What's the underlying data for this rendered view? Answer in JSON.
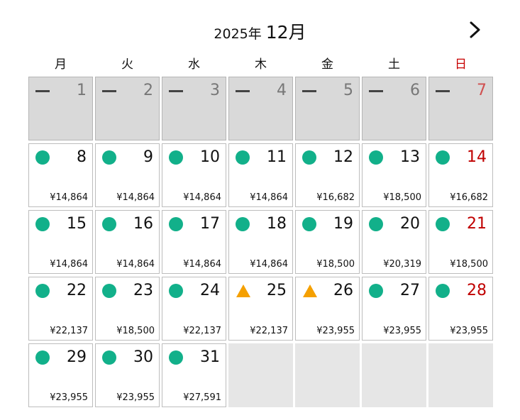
{
  "header": {
    "year": "2025年",
    "month": "12月"
  },
  "weekdays": [
    "月",
    "火",
    "水",
    "木",
    "金",
    "土",
    "日"
  ],
  "colors": {
    "available": "#12b08a",
    "limited": "#f5a000",
    "sunday": "#c00000",
    "past_bg": "#d9d9d9"
  },
  "weeks": [
    [
      {
        "day": "1",
        "status": "past"
      },
      {
        "day": "2",
        "status": "past"
      },
      {
        "day": "3",
        "status": "past"
      },
      {
        "day": "4",
        "status": "past"
      },
      {
        "day": "5",
        "status": "past"
      },
      {
        "day": "6",
        "status": "past"
      },
      {
        "day": "7",
        "status": "past"
      }
    ],
    [
      {
        "day": "8",
        "status": "available",
        "price": "¥14,864"
      },
      {
        "day": "9",
        "status": "available",
        "price": "¥14,864"
      },
      {
        "day": "10",
        "status": "available",
        "price": "¥14,864"
      },
      {
        "day": "11",
        "status": "available",
        "price": "¥14,864"
      },
      {
        "day": "12",
        "status": "available",
        "price": "¥16,682"
      },
      {
        "day": "13",
        "status": "available",
        "price": "¥18,500"
      },
      {
        "day": "14",
        "status": "available",
        "price": "¥16,682"
      }
    ],
    [
      {
        "day": "15",
        "status": "available",
        "price": "¥14,864"
      },
      {
        "day": "16",
        "status": "available",
        "price": "¥14,864"
      },
      {
        "day": "17",
        "status": "available",
        "price": "¥14,864"
      },
      {
        "day": "18",
        "status": "available",
        "price": "¥14,864"
      },
      {
        "day": "19",
        "status": "available",
        "price": "¥18,500"
      },
      {
        "day": "20",
        "status": "available",
        "price": "¥20,319"
      },
      {
        "day": "21",
        "status": "available",
        "price": "¥18,500"
      }
    ],
    [
      {
        "day": "22",
        "status": "available",
        "price": "¥22,137"
      },
      {
        "day": "23",
        "status": "available",
        "price": "¥18,500"
      },
      {
        "day": "24",
        "status": "available",
        "price": "¥22,137"
      },
      {
        "day": "25",
        "status": "limited",
        "price": "¥22,137"
      },
      {
        "day": "26",
        "status": "limited",
        "price": "¥23,955"
      },
      {
        "day": "27",
        "status": "available",
        "price": "¥23,955"
      },
      {
        "day": "28",
        "status": "available",
        "price": "¥23,955"
      }
    ],
    [
      {
        "day": "29",
        "status": "available",
        "price": "¥23,955"
      },
      {
        "day": "30",
        "status": "available",
        "price": "¥23,955"
      },
      {
        "day": "31",
        "status": "available",
        "price": "¥27,591"
      },
      {
        "status": "empty"
      },
      {
        "status": "empty"
      },
      {
        "status": "empty"
      },
      {
        "status": "empty"
      }
    ]
  ]
}
